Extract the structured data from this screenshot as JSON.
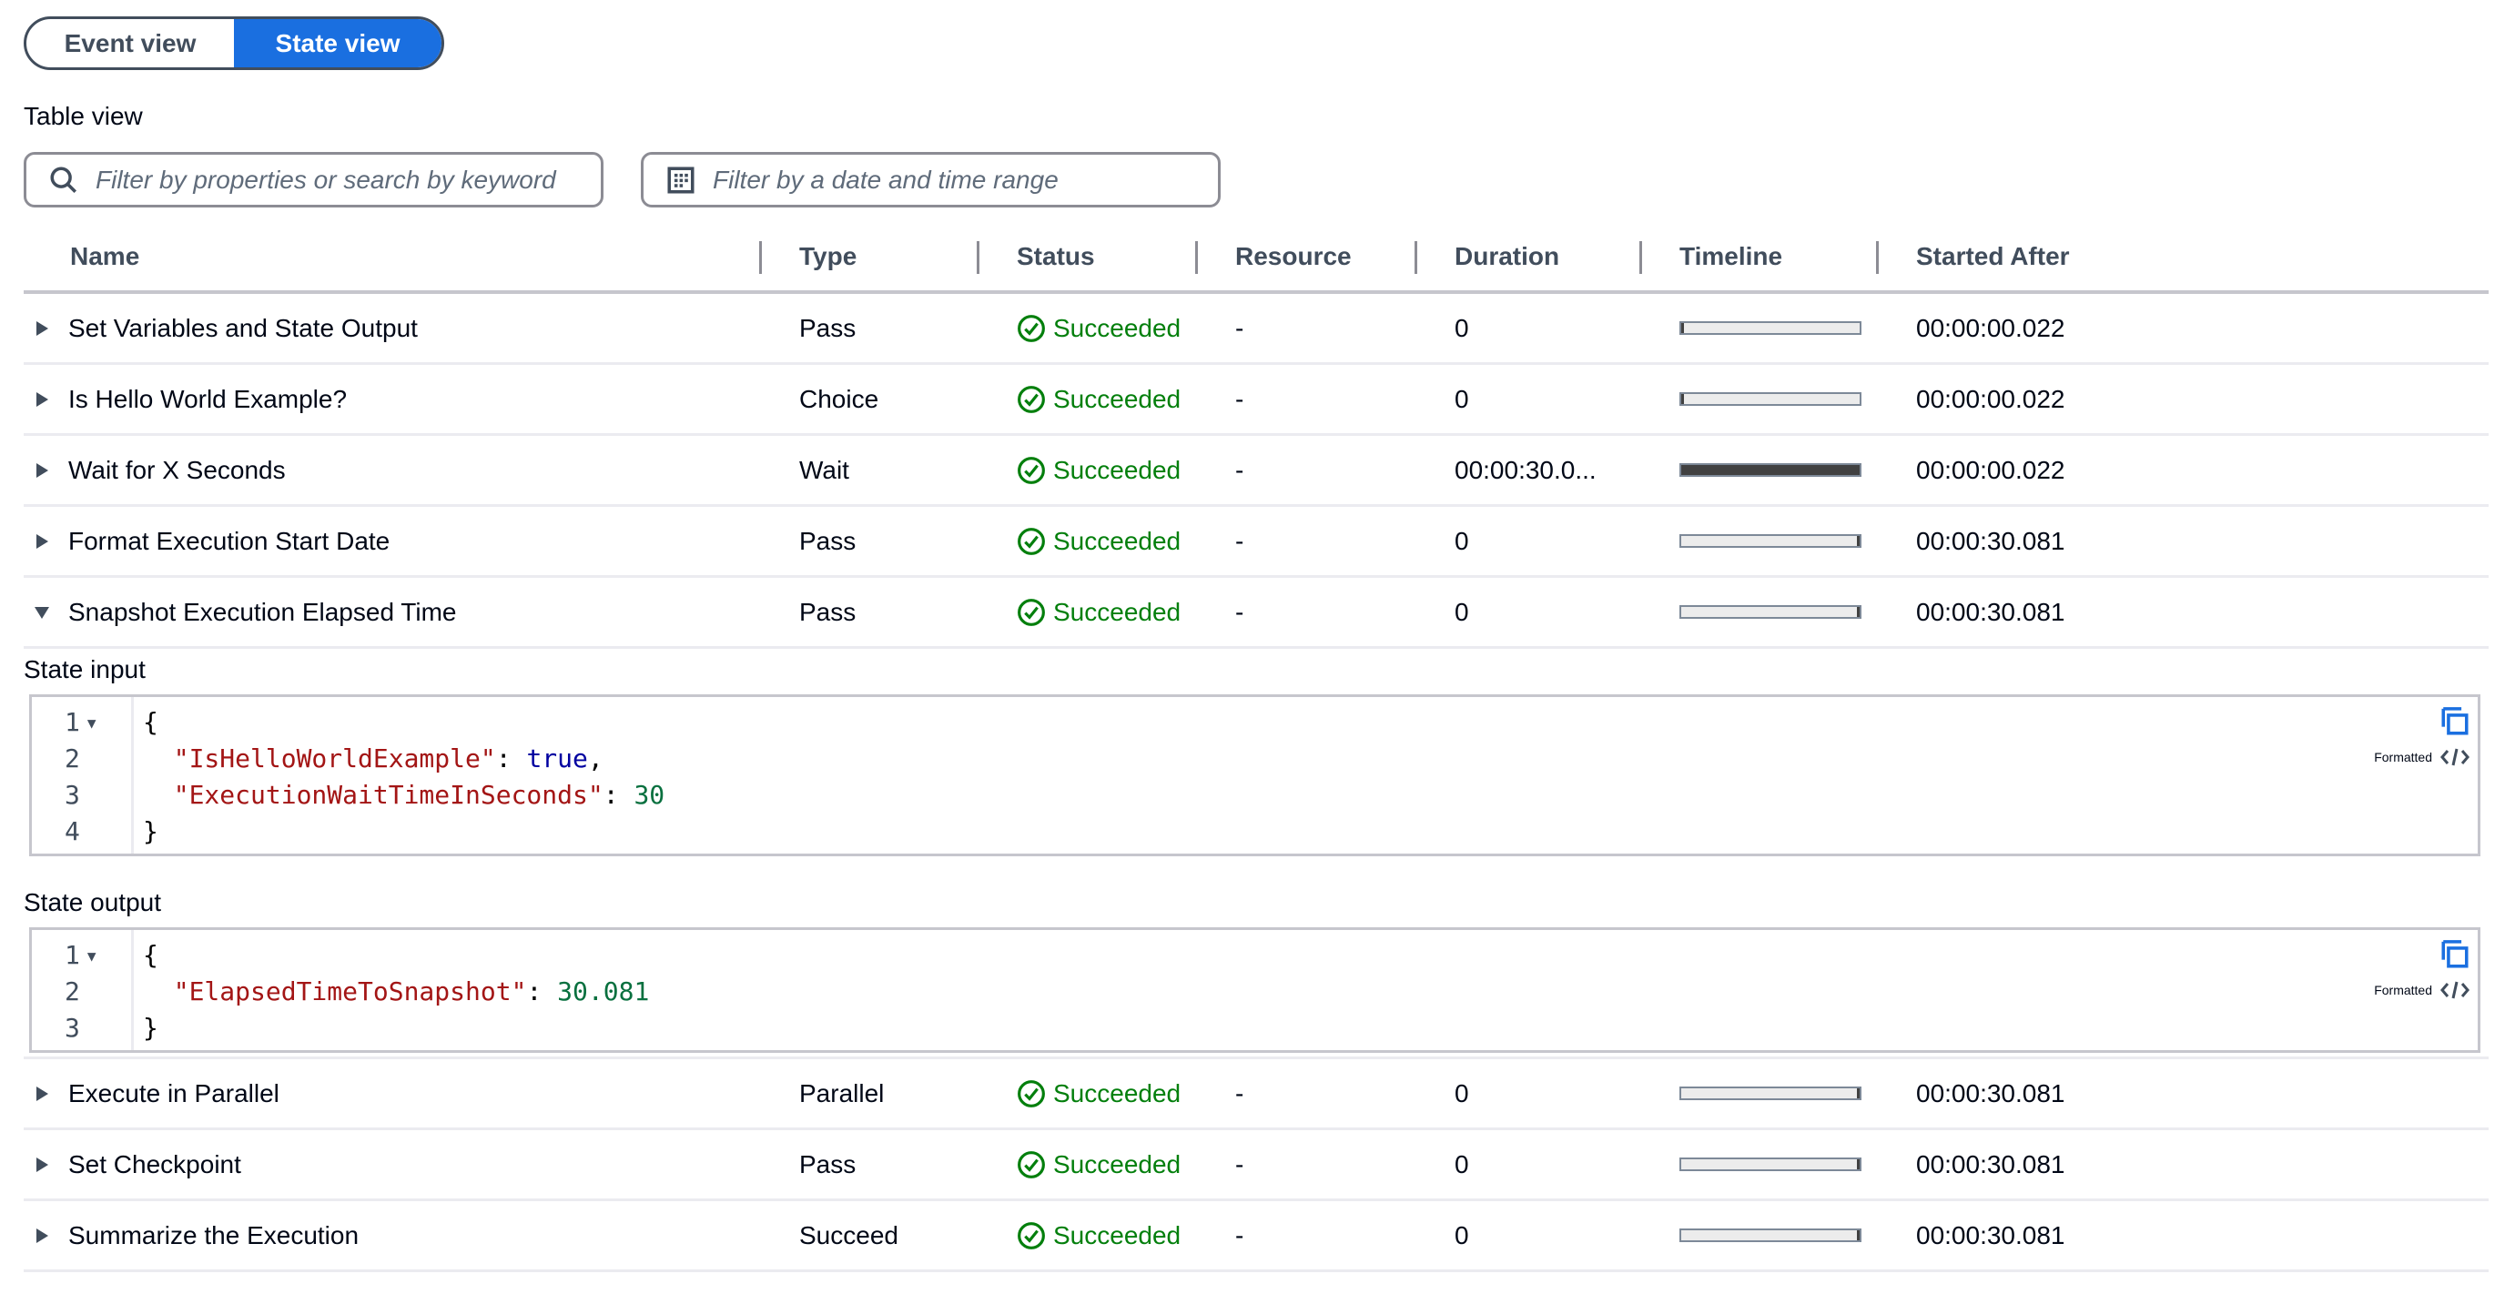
{
  "view_toggle": {
    "options": [
      "Event view",
      "State view"
    ],
    "selected": "State view"
  },
  "table_view_label": "Table view",
  "filters": {
    "search_placeholder": "Filter by properties or search by keyword",
    "date_placeholder": "Filter by a date and time range"
  },
  "columns": [
    "Name",
    "Type",
    "Status",
    "Resource",
    "Duration",
    "Timeline",
    "Started After"
  ],
  "rows": [
    {
      "name": "Set Variables and State Output",
      "type": "Pass",
      "status": "Succeeded",
      "resource": "-",
      "duration": "0",
      "timeline": {
        "start": 0,
        "length": 0
      },
      "started_after": "00:00:00.022",
      "expanded": false
    },
    {
      "name": "Is Hello World Example?",
      "type": "Choice",
      "status": "Succeeded",
      "resource": "-",
      "duration": "0",
      "timeline": {
        "start": 0,
        "length": 0
      },
      "started_after": "00:00:00.022",
      "expanded": false
    },
    {
      "name": "Wait for X Seconds",
      "type": "Wait",
      "status": "Succeeded",
      "resource": "-",
      "duration": "00:00:30.0...",
      "timeline": {
        "start": 0,
        "length": 1
      },
      "started_after": "00:00:00.022",
      "expanded": false
    },
    {
      "name": "Format Execution Start Date",
      "type": "Pass",
      "status": "Succeeded",
      "resource": "-",
      "duration": "0",
      "timeline": {
        "start": 1,
        "length": 0
      },
      "started_after": "00:00:30.081",
      "expanded": false
    },
    {
      "name": "Snapshot Execution Elapsed Time",
      "type": "Pass",
      "status": "Succeeded",
      "resource": "-",
      "duration": "0",
      "timeline": {
        "start": 1,
        "length": 0
      },
      "started_after": "00:00:30.081",
      "expanded": true
    },
    {
      "name": "Execute in Parallel",
      "type": "Parallel",
      "status": "Succeeded",
      "resource": "-",
      "duration": "0",
      "timeline": {
        "start": 1,
        "length": 0
      },
      "started_after": "00:00:30.081",
      "expanded": false
    },
    {
      "name": "Set Checkpoint",
      "type": "Pass",
      "status": "Succeeded",
      "resource": "-",
      "duration": "0",
      "timeline": {
        "start": 1,
        "length": 0
      },
      "started_after": "00:00:30.081",
      "expanded": false
    },
    {
      "name": "Summarize the Execution",
      "type": "Succeed",
      "status": "Succeeded",
      "resource": "-",
      "duration": "0",
      "timeline": {
        "start": 1,
        "length": 0
      },
      "started_after": "00:00:30.081",
      "expanded": false
    }
  ],
  "details": {
    "state_input": {
      "label": "State input",
      "line_numbers": [
        "1",
        "2",
        "3",
        "4"
      ],
      "lines": [
        [
          {
            "t": "{",
            "c": "p"
          }
        ],
        [
          {
            "t": "  \"IsHelloWorldExample\"",
            "c": "k"
          },
          {
            "t": ": ",
            "c": "p"
          },
          {
            "t": "true",
            "c": "b"
          },
          {
            "t": ",",
            "c": "p"
          }
        ],
        [
          {
            "t": "  \"ExecutionWaitTimeInSeconds\"",
            "c": "k"
          },
          {
            "t": ": ",
            "c": "p"
          },
          {
            "t": "30",
            "c": "n"
          }
        ],
        [
          {
            "t": "}",
            "c": "p"
          }
        ]
      ],
      "formatted_label": "Formatted"
    },
    "state_output": {
      "label": "State output",
      "line_numbers": [
        "1",
        "2",
        "3"
      ],
      "lines": [
        [
          {
            "t": "{",
            "c": "p"
          }
        ],
        [
          {
            "t": "  \"ElapsedTimeToSnapshot\"",
            "c": "k"
          },
          {
            "t": ": ",
            "c": "p"
          },
          {
            "t": "30.081",
            "c": "n"
          }
        ],
        [
          {
            "t": "}",
            "c": "p"
          }
        ]
      ],
      "formatted_label": "Formatted"
    }
  },
  "colors": {
    "accent": "#1a6fe0",
    "success": "#037f0c",
    "timeline_fill": "#414141"
  },
  "icons": {
    "search": "search-icon",
    "date": "calendar-icon",
    "status": "check-circle-icon",
    "copy": "copy-icon",
    "format": "code-icon"
  }
}
